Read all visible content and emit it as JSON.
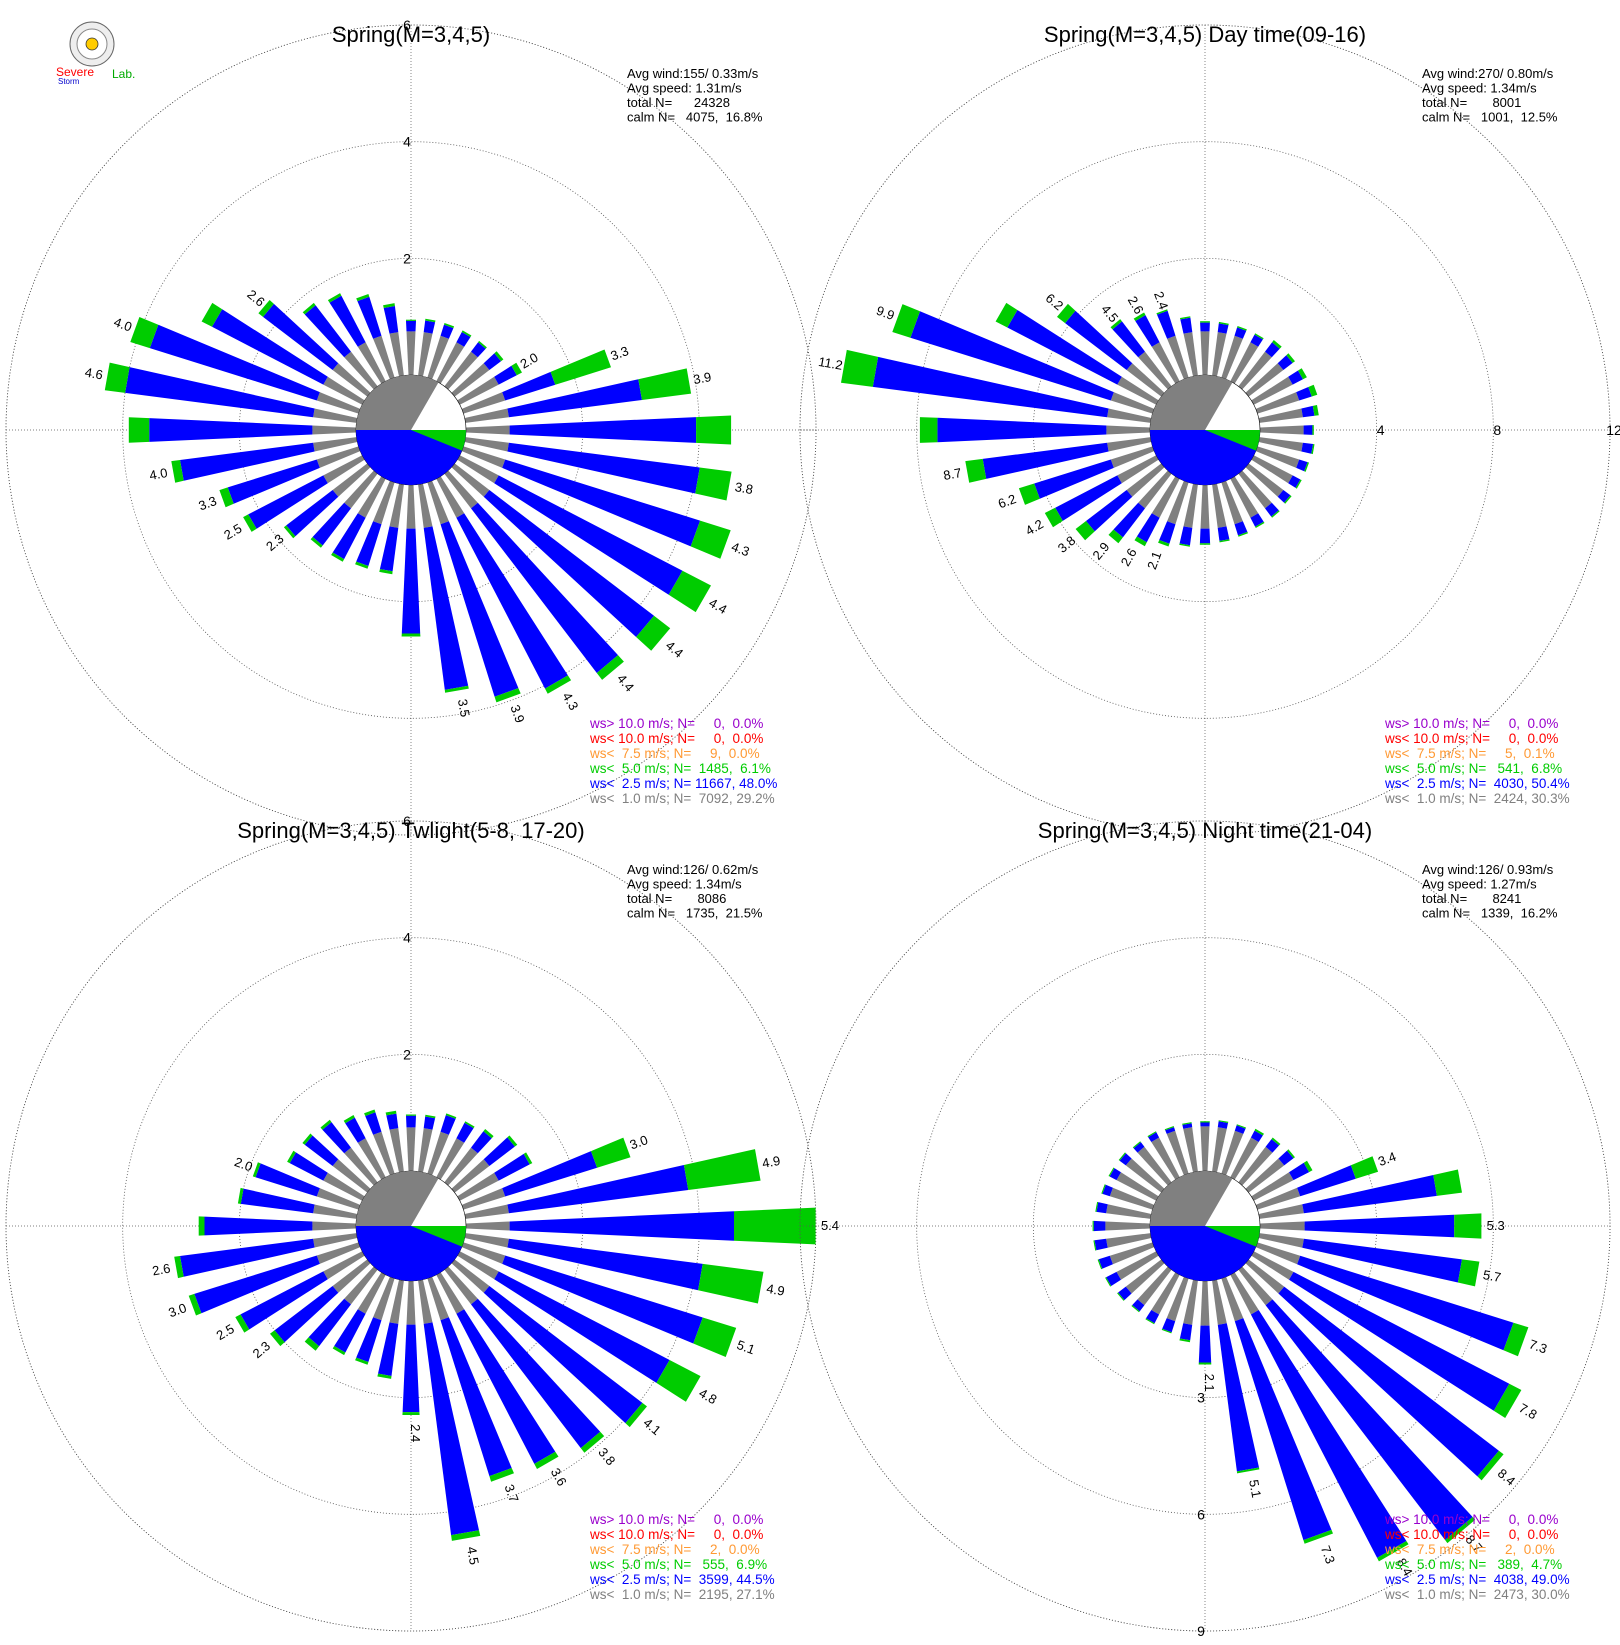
{
  "logo": {
    "text_top": "Severe",
    "text_bottom": "Storm",
    "text_lab": "Lab."
  },
  "colors": {
    "calm_gray": "#808080",
    "ws_gt10": "#9900cc",
    "ws_lt10": "#ff0000",
    "ws_lt7_5": "#ff9933",
    "ws_lt5": "#00cc00",
    "ws_lt2_5": "#0000ff",
    "ws_lt1": "#808080",
    "grid": "#555555"
  },
  "chart_data": [
    {
      "type": "windrose",
      "title": "Spring(M=3,4,5)",
      "rings": [
        2,
        4,
        6
      ],
      "ring_labels": [
        "2",
        "4",
        "6"
      ],
      "ring_label_placement": "vertical",
      "stats": [
        "Avg wind:155/ 0.33m/s",
        "Avg speed: 1.31m/s",
        "total N=      24328",
        "calm N=   4075,  16.8%"
      ],
      "calm_pct": 16.8,
      "legend": [
        {
          "label": "ws> 10.0 m/s; N=     0,  0.0%",
          "color": "#9900cc"
        },
        {
          "label": "ws< 10.0 m/s; N=     0,  0.0%",
          "color": "#ff0000"
        },
        {
          "label": "ws<  7.5 m/s; N=     9,  0.0%",
          "color": "#ff9933"
        },
        {
          "label": "ws<  5.0 m/s; N=  1485,  6.1%",
          "color": "#00cc00"
        },
        {
          "label": "ws<  2.5 m/s; N= 11667, 48.0%",
          "color": "#0000ff"
        },
        {
          "label": "ws<  1.0 m/s; N=  7092, 29.2%",
          "color": "#808080"
        }
      ],
      "directions": [
        0,
        10,
        20,
        30,
        40,
        50,
        60,
        70,
        80,
        90,
        100,
        110,
        120,
        130,
        140,
        150,
        160,
        170,
        180,
        190,
        200,
        210,
        220,
        230,
        240,
        250,
        260,
        270,
        280,
        290,
        300,
        310,
        320,
        330,
        340,
        350
      ],
      "series": [
        {
          "name": "ws<  1.0 m/s",
          "values": [
            0.75,
            0.75,
            0.75,
            0.75,
            0.75,
            0.75,
            0.75,
            0.75,
            0.75,
            0.75,
            0.75,
            0.75,
            0.75,
            0.75,
            0.75,
            0.75,
            0.75,
            0.75,
            0.75,
            0.75,
            0.75,
            0.75,
            0.75,
            0.75,
            0.75,
            0.75,
            0.75,
            0.75,
            0.75,
            0.75,
            0.75,
            0.75,
            0.75,
            0.75,
            0.75,
            0.75
          ]
        },
        {
          "name": "ws<  2.5 m/s",
          "values": [
            0.18,
            0.2,
            0.2,
            0.2,
            0.2,
            0.25,
            0.35,
            0.9,
            2.3,
            3.2,
            3.3,
            3.5,
            3.55,
            3.55,
            3.55,
            3.3,
            3.1,
            2.8,
            1.8,
            0.75,
            0.75,
            0.8,
            0.8,
            1.0,
            1.45,
            1.6,
            2.3,
            2.8,
            3.25,
            3.0,
            2.15,
            1.5,
            1.0,
            0.9,
            0.7,
            0.45
          ]
        },
        {
          "name": "ws<  5.0 m/s",
          "values": [
            0.02,
            0.03,
            0.03,
            0.03,
            0.03,
            0.05,
            0.1,
            1.0,
            0.85,
            0.6,
            0.55,
            0.55,
            0.55,
            0.35,
            0.15,
            0.1,
            0.1,
            0.05,
            0.05,
            0.05,
            0.05,
            0.05,
            0.05,
            0.05,
            0.1,
            0.15,
            0.15,
            0.35,
            0.35,
            0.35,
            0.2,
            0.1,
            0.05,
            0.05,
            0.05,
            0.05
          ]
        }
      ],
      "bar_labels": [
        {
          "dir": 60,
          "text": "2.0"
        },
        {
          "dir": 70,
          "text": "3.3"
        },
        {
          "dir": 80,
          "text": "3.9"
        },
        {
          "dir": 100,
          "text": "3.8"
        },
        {
          "dir": 110,
          "text": "4.3"
        },
        {
          "dir": 120,
          "text": "4.4"
        },
        {
          "dir": 130,
          "text": "4.4"
        },
        {
          "dir": 140,
          "text": "4.4"
        },
        {
          "dir": 150,
          "text": "4.3"
        },
        {
          "dir": 160,
          "text": "3.9"
        },
        {
          "dir": 170,
          "text": "3.5"
        },
        {
          "dir": 230,
          "text": "2.3"
        },
        {
          "dir": 240,
          "text": "2.5"
        },
        {
          "dir": 250,
          "text": "3.3"
        },
        {
          "dir": 260,
          "text": "4.0"
        },
        {
          "dir": 280,
          "text": "4.6"
        },
        {
          "dir": 290,
          "text": "4.0"
        },
        {
          "dir": 310,
          "text": "2.6"
        }
      ]
    },
    {
      "type": "windrose",
      "title": "Spring(M=3,4,5) Day time(09-16)",
      "rings": [
        4,
        8,
        12
      ],
      "ring_labels": [
        "4",
        "8",
        "12"
      ],
      "ring_label_placement": "horizontal",
      "stats": [
        "Avg wind:270/ 0.80m/s",
        "Avg speed: 1.34m/s",
        "total N=       8001",
        "calm N=   1001,  12.5%"
      ],
      "calm_pct": 12.5,
      "legend": [
        {
          "label": "ws> 10.0 m/s; N=     0,  0.0%",
          "color": "#9900cc"
        },
        {
          "label": "ws< 10.0 m/s; N=     0,  0.0%",
          "color": "#ff0000"
        },
        {
          "label": "ws<  7.5 m/s; N=     5,  0.1%",
          "color": "#ff9933"
        },
        {
          "label": "ws<  5.0 m/s; N=   541,  6.8%",
          "color": "#00cc00"
        },
        {
          "label": "ws<  2.5 m/s; N=  4030, 50.4%",
          "color": "#0000ff"
        },
        {
          "label": "ws<  1.0 m/s; N=  2424, 30.3%",
          "color": "#808080"
        }
      ],
      "directions": [
        0,
        10,
        20,
        30,
        40,
        50,
        60,
        70,
        80,
        90,
        100,
        110,
        120,
        130,
        140,
        150,
        160,
        170,
        180,
        190,
        200,
        210,
        220,
        230,
        240,
        250,
        260,
        270,
        280,
        290,
        300,
        310,
        320,
        330,
        340,
        350
      ],
      "series": [
        {
          "name": "ws<  1.0 m/s",
          "values": [
            1.5,
            1.5,
            1.5,
            1.5,
            1.5,
            1.5,
            1.5,
            1.5,
            1.5,
            1.5,
            1.5,
            1.5,
            1.5,
            1.5,
            1.5,
            1.5,
            1.5,
            1.5,
            1.5,
            1.5,
            1.5,
            1.5,
            1.5,
            1.5,
            1.5,
            1.5,
            1.5,
            1.5,
            1.5,
            1.5,
            1.5,
            1.5,
            1.5,
            1.5,
            1.5,
            1.5
          ]
        },
        {
          "name": "ws<  2.5 m/s",
          "values": [
            0.3,
            0.3,
            0.3,
            0.3,
            0.4,
            0.4,
            0.4,
            0.45,
            0.4,
            0.3,
            0.35,
            0.3,
            0.3,
            0.3,
            0.35,
            0.35,
            0.4,
            0.45,
            0.5,
            0.6,
            0.7,
            0.95,
            1.25,
            1.75,
            2.4,
            2.75,
            4.3,
            5.8,
            8.1,
            7.2,
            4.25,
            2.65,
            1.3,
            1.05,
            0.9,
            0.5
          ]
        },
        {
          "name": "ws<  5.0 m/s",
          "values": [
            0.05,
            0.05,
            0.05,
            0.05,
            0.1,
            0.1,
            0.15,
            0.2,
            0.15,
            0.05,
            0.05,
            0.05,
            0.05,
            0.05,
            0.05,
            0.05,
            0.05,
            0.05,
            0.05,
            0.05,
            0.1,
            0.15,
            0.25,
            0.45,
            0.4,
            0.55,
            0.6,
            0.6,
            1.1,
            0.65,
            0.45,
            0.35,
            0.1,
            0.1,
            0.05,
            0.05
          ]
        }
      ],
      "bar_labels": [
        {
          "dir": 200,
          "text": "2.1"
        },
        {
          "dir": 210,
          "text": "2.6"
        },
        {
          "dir": 220,
          "text": "2.9"
        },
        {
          "dir": 230,
          "text": "3.8"
        },
        {
          "dir": 240,
          "text": "4.2"
        },
        {
          "dir": 250,
          "text": "6.2"
        },
        {
          "dir": 260,
          "text": "8.7"
        },
        {
          "dir": 280,
          "text": "11.2"
        },
        {
          "dir": 290,
          "text": "9.9"
        },
        {
          "dir": 310,
          "text": "6.2"
        },
        {
          "dir": 320,
          "text": "4.5"
        },
        {
          "dir": 330,
          "text": "2.6"
        },
        {
          "dir": 340,
          "text": "2.4"
        }
      ]
    },
    {
      "type": "windrose",
      "title": "Spring(M=3,4,5) Twlight(5-8, 17-20)",
      "rings": [
        2,
        4,
        6
      ],
      "ring_labels": [
        "2",
        "4",
        "6"
      ],
      "ring_label_placement": "vertical",
      "stats": [
        "Avg wind:126/ 0.62m/s",
        "Avg speed: 1.34m/s",
        "total N=       8086",
        "calm N=   1735,  21.5%"
      ],
      "calm_pct": 21.5,
      "legend": [
        {
          "label": "ws> 10.0 m/s; N=     0,  0.0%",
          "color": "#9900cc"
        },
        {
          "label": "ws< 10.0 m/s; N=     0,  0.0%",
          "color": "#ff0000"
        },
        {
          "label": "ws<  7.5 m/s; N=     2,  0.0%",
          "color": "#ff9933"
        },
        {
          "label": "ws<  5.0 m/s; N=   555,  6.9%",
          "color": "#00cc00"
        },
        {
          "label": "ws<  2.5 m/s; N=  3599, 44.5%",
          "color": "#0000ff"
        },
        {
          "label": "ws<  1.0 m/s; N=  2195, 27.1%",
          "color": "#808080"
        }
      ],
      "directions": [
        0,
        10,
        20,
        30,
        40,
        50,
        60,
        70,
        80,
        90,
        100,
        110,
        120,
        130,
        140,
        150,
        160,
        170,
        180,
        190,
        200,
        210,
        220,
        230,
        240,
        250,
        260,
        270,
        280,
        290,
        300,
        310,
        320,
        330,
        340,
        350
      ],
      "series": [
        {
          "name": "ws<  1.0 m/s",
          "values": [
            0.75,
            0.75,
            0.75,
            0.75,
            0.75,
            0.75,
            0.75,
            0.75,
            0.75,
            0.75,
            0.75,
            0.75,
            0.75,
            0.75,
            0.75,
            0.75,
            0.75,
            0.75,
            0.75,
            0.75,
            0.75,
            0.75,
            0.75,
            0.75,
            0.75,
            0.75,
            0.75,
            0.75,
            0.75,
            0.75,
            0.75,
            0.75,
            0.75,
            0.75,
            0.75,
            0.75
          ]
        },
        {
          "name": "ws<  2.5 m/s",
          "values": [
            0.2,
            0.2,
            0.3,
            0.3,
            0.35,
            0.55,
            0.6,
            1.65,
            3.1,
            3.85,
            3.35,
            3.55,
            3.3,
            3.3,
            3.1,
            2.9,
            2.8,
            3.65,
            1.5,
            0.9,
            0.75,
            0.75,
            0.9,
            1.25,
            1.6,
            2.2,
            2.3,
            1.85,
            1.25,
            1.1,
            0.65,
            0.6,
            0.55,
            0.4,
            0.35,
            0.25
          ]
        },
        {
          "name": "ws<  5.0 m/s",
          "values": [
            0.02,
            0.03,
            0.03,
            0.03,
            0.05,
            0.05,
            0.05,
            0.6,
            1.25,
            1.4,
            1.05,
            0.6,
            0.6,
            0.1,
            0.1,
            0.1,
            0.1,
            0.1,
            0.05,
            0.05,
            0.05,
            0.05,
            0.1,
            0.1,
            0.1,
            0.1,
            0.1,
            0.1,
            0.05,
            0.05,
            0.05,
            0.05,
            0.05,
            0.05,
            0.05,
            0.05
          ]
        }
      ],
      "bar_labels": [
        {
          "dir": 70,
          "text": "3.0"
        },
        {
          "dir": 80,
          "text": "4.9"
        },
        {
          "dir": 90,
          "text": "5.4"
        },
        {
          "dir": 100,
          "text": "4.9"
        },
        {
          "dir": 110,
          "text": "5.1"
        },
        {
          "dir": 120,
          "text": "4.8"
        },
        {
          "dir": 130,
          "text": "4.1"
        },
        {
          "dir": 140,
          "text": "3.8"
        },
        {
          "dir": 150,
          "text": "3.6"
        },
        {
          "dir": 160,
          "text": "3.7"
        },
        {
          "dir": 170,
          "text": "4.5"
        },
        {
          "dir": 180,
          "text": "2.4"
        },
        {
          "dir": 230,
          "text": "2.3"
        },
        {
          "dir": 240,
          "text": "2.5"
        },
        {
          "dir": 250,
          "text": "3.0"
        },
        {
          "dir": 260,
          "text": "2.6"
        },
        {
          "dir": 290,
          "text": "2.0"
        }
      ]
    },
    {
      "type": "windrose",
      "title": "Spring(M=3,4,5) Night time(21-04)",
      "rings": [
        3,
        6,
        9
      ],
      "ring_labels": [
        "3",
        "6",
        "9"
      ],
      "ring_label_placement": "vertical-bottom",
      "stats": [
        "Avg wind:126/ 0.93m/s",
        "Avg speed: 1.27m/s",
        "total N=       8241",
        "calm N=   1339,  16.2%"
      ],
      "calm_pct": 16.2,
      "legend": [
        {
          "label": "ws> 10.0 m/s; N=     0,  0.0%",
          "color": "#9900cc"
        },
        {
          "label": "ws< 10.0 m/s; N=     0,  0.0%",
          "color": "#ff0000"
        },
        {
          "label": "ws<  7.5 m/s; N=     2,  0.0%",
          "color": "#ff9933"
        },
        {
          "label": "ws<  5.0 m/s; N=   389,  4.7%",
          "color": "#00cc00"
        },
        {
          "label": "ws<  2.5 m/s; N=  4038, 49.0%",
          "color": "#0000ff"
        },
        {
          "label": "ws<  1.0 m/s; N=  2473, 30.0%",
          "color": "#808080"
        }
      ],
      "directions": [
        0,
        10,
        20,
        30,
        40,
        50,
        60,
        70,
        80,
        90,
        100,
        110,
        120,
        130,
        140,
        150,
        160,
        170,
        180,
        190,
        200,
        210,
        220,
        230,
        240,
        250,
        260,
        270,
        280,
        290,
        300,
        310,
        320,
        330,
        340,
        350
      ],
      "series": [
        {
          "name": "ws<  1.0 m/s",
          "values": [
            1.15,
            1.15,
            1.15,
            1.15,
            1.15,
            1.15,
            1.15,
            1.15,
            1.15,
            1.15,
            1.15,
            1.15,
            1.15,
            1.15,
            1.15,
            1.15,
            1.15,
            1.15,
            1.15,
            1.15,
            1.15,
            1.15,
            1.15,
            1.15,
            1.15,
            1.15,
            1.15,
            1.15,
            1.15,
            1.15,
            1.15,
            1.15,
            1.15,
            1.15,
            1.15,
            1.15
          ]
        },
        {
          "name": "ws<  2.5 m/s",
          "values": [
            0.1,
            0.15,
            0.15,
            0.2,
            0.25,
            0.3,
            0.45,
            1.5,
            3.45,
            3.85,
            4.1,
            5.75,
            6.25,
            6.95,
            7.6,
            7.05,
            5.9,
            3.8,
            0.95,
            0.4,
            0.3,
            0.25,
            0.2,
            0.25,
            0.3,
            0.3,
            0.3,
            0.3,
            0.25,
            0.2,
            0.2,
            0.2,
            0.15,
            0.15,
            0.1,
            0.1
          ]
        },
        {
          "name": "ws<  5.0 m/s",
          "values": [
            0.03,
            0.03,
            0.03,
            0.05,
            0.05,
            0.05,
            0.1,
            0.6,
            0.65,
            0.7,
            0.45,
            0.4,
            0.35,
            0.15,
            0.1,
            0.1,
            0.1,
            0.05,
            0.05,
            0.05,
            0.03,
            0.03,
            0.03,
            0.03,
            0.03,
            0.03,
            0.03,
            0.03,
            0.03,
            0.03,
            0.03,
            0.03,
            0.03,
            0.03,
            0.03,
            0.03
          ]
        }
      ],
      "bar_labels": [
        {
          "dir": 70,
          "text": "3.4"
        },
        {
          "dir": 90,
          "text": "5.3"
        },
        {
          "dir": 100,
          "text": "5.7"
        },
        {
          "dir": 110,
          "text": "7.3"
        },
        {
          "dir": 120,
          "text": "7.8"
        },
        {
          "dir": 130,
          "text": "8.4"
        },
        {
          "dir": 140,
          "text": "8.7"
        },
        {
          "dir": 150,
          "text": "8.4"
        },
        {
          "dir": 160,
          "text": "7.3"
        },
        {
          "dir": 170,
          "text": "5.1"
        },
        {
          "dir": 180,
          "text": "2.1"
        }
      ]
    }
  ]
}
